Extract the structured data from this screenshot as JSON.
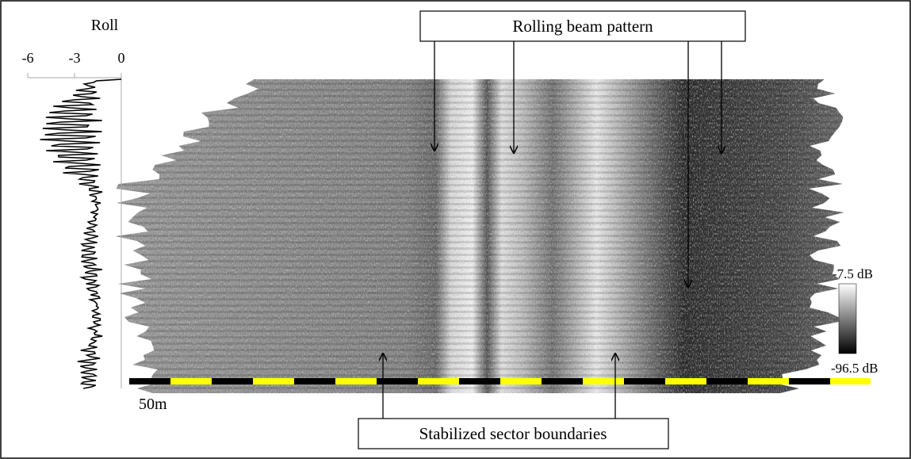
{
  "roll_panel": {
    "title": "Roll",
    "tick_labels": [
      "-6",
      "-3",
      "0"
    ]
  },
  "callouts": {
    "top": "Rolling beam pattern",
    "bottom": "Stabilized sector boundaries"
  },
  "colorbar": {
    "max_label": "-7.5 dB",
    "min_label": "-96.5 dB"
  },
  "scale_bar": {
    "label": "50m"
  }
}
